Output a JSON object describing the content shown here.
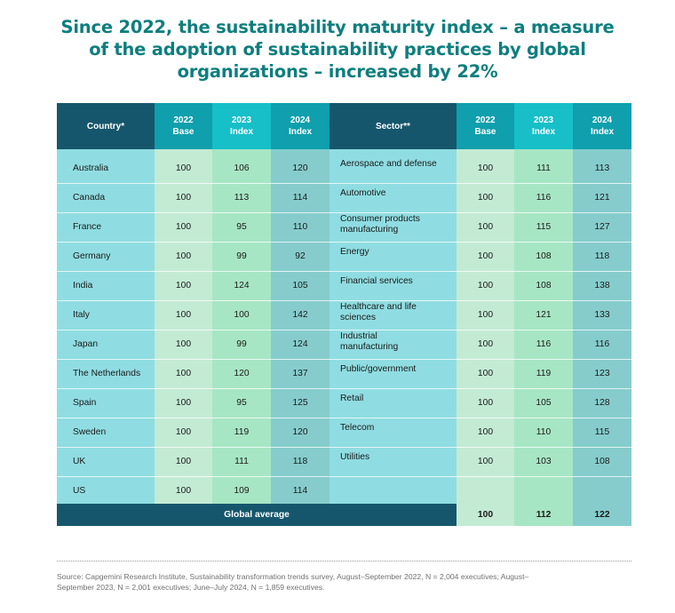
{
  "title": {
    "line1": "Since 2022, the sustainability maturity index – a measure",
    "line2": "of the adoption of sustainability practices by global",
    "line3": "organizations – increased by 22%"
  },
  "headers": {
    "country": "Country*",
    "c2022": [
      "2022",
      "Base"
    ],
    "c2023": [
      "2023",
      "Index"
    ],
    "c2024": [
      "2024",
      "Index"
    ],
    "sector": "Sector**",
    "s2022": [
      "2022",
      "Base"
    ],
    "s2023": [
      "2023",
      "Index"
    ],
    "s2024": [
      "2024",
      "Index"
    ]
  },
  "countries": [
    {
      "name": "Australia",
      "v2022": "100",
      "v2023": "106",
      "v2024": "120"
    },
    {
      "name": "Canada",
      "v2022": "100",
      "v2023": "113",
      "v2024": "114"
    },
    {
      "name": "France",
      "v2022": "100",
      "v2023": "95",
      "v2024": "110"
    },
    {
      "name": "Germany",
      "v2022": "100",
      "v2023": "99",
      "v2024": "92"
    },
    {
      "name": "India",
      "v2022": "100",
      "v2023": "124",
      "v2024": "105"
    },
    {
      "name": "Italy",
      "v2022": "100",
      "v2023": "100",
      "v2024": "142"
    },
    {
      "name": "Japan",
      "v2022": "100",
      "v2023": "99",
      "v2024": "124"
    },
    {
      "name": "The Netherlands",
      "v2022": "100",
      "v2023": "120",
      "v2024": "137"
    },
    {
      "name": "Spain",
      "v2022": "100",
      "v2023": "95",
      "v2024": "125"
    },
    {
      "name": "Sweden",
      "v2022": "100",
      "v2023": "119",
      "v2024": "120"
    },
    {
      "name": "UK",
      "v2022": "100",
      "v2023": "111",
      "v2024": "118"
    },
    {
      "name": "US",
      "v2022": "100",
      "v2023": "109",
      "v2024": "114"
    }
  ],
  "sectors": [
    {
      "name": [
        "Aerospace and defense"
      ],
      "v2022": "100",
      "v2023": "111",
      "v2024": "113"
    },
    {
      "name": [
        "Automotive"
      ],
      "v2022": "100",
      "v2023": "116",
      "v2024": "121"
    },
    {
      "name": [
        "Consumer products",
        "manufacturing"
      ],
      "v2022": "100",
      "v2023": "115",
      "v2024": "127"
    },
    {
      "name": [
        "Energy"
      ],
      "v2022": "100",
      "v2023": "108",
      "v2024": "118"
    },
    {
      "name": [
        "Financial services"
      ],
      "v2022": "100",
      "v2023": "108",
      "v2024": "138"
    },
    {
      "name": [
        "Healthcare and life",
        "sciences"
      ],
      "v2022": "100",
      "v2023": "121",
      "v2024": "133"
    },
    {
      "name": [
        "Industrial",
        "manufacturing"
      ],
      "v2022": "100",
      "v2023": "116",
      "v2024": "116"
    },
    {
      "name": [
        "Public/government"
      ],
      "v2022": "100",
      "v2023": "119",
      "v2024": "123"
    },
    {
      "name": [
        "Retail"
      ],
      "v2022": "100",
      "v2023": "105",
      "v2024": "128"
    },
    {
      "name": [
        "Telecom"
      ],
      "v2022": "100",
      "v2023": "110",
      "v2024": "115"
    },
    {
      "name": [
        "Utilities"
      ],
      "v2022": "100",
      "v2023": "103",
      "v2024": "108"
    }
  ],
  "global_average": {
    "label": "Global average",
    "v2022": "100",
    "v2023": "112",
    "v2024": "122"
  },
  "source": {
    "line1": "Source: Capgemini Research Institute, Sustainability transformation trends survey, August–September 2022, N = 2,004 executives; August–",
    "line2": "September 2023, N = 2,001 executives; June–July 2024, N = 1,859 executives."
  },
  "colors": {
    "dark_teal": "#16566c",
    "teal": "#0f9fad",
    "bright_cyan": "#17bfc8",
    "label_cyan": "#8fdde2",
    "base_mint": "#c3ebd4",
    "index2023_mint": "#a7e6c4",
    "index2024_teal": "#86cccc",
    "title_teal": "#0e7e7e"
  }
}
